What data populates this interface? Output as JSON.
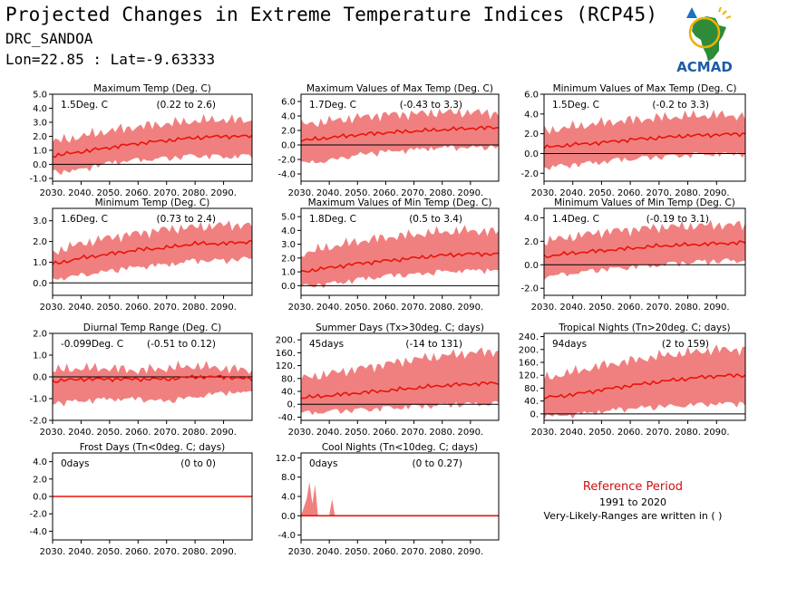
{
  "header": {
    "title": "Projected Changes in Extreme Temperature Indices (RCP45)",
    "station": "DRC_SANDOA",
    "coords": "Lon=22.85 : Lat=-9.63333"
  },
  "logo": {
    "text": "ACMAD"
  },
  "reference": {
    "title": "Reference Period",
    "years": "1991 to 2020",
    "note": "Very-Likely-Ranges are written in ( )"
  },
  "colors": {
    "line": "#e8140a",
    "band": "#f08080",
    "zero": "#000000"
  },
  "chart_data": [
    {
      "type": "area",
      "title": "Maximum Temp (Deg. C)",
      "change": "1.5Deg. C",
      "range": "(0.22 to 2.6)",
      "ylim": [
        -1.2,
        5.0
      ],
      "yticks": [
        "-1.0",
        "0.0",
        "1.0",
        "2.0",
        "3.0",
        "4.0",
        "5.0"
      ],
      "xticks": [
        "2030.",
        "2040.",
        "2050.",
        "2060.",
        "2070.",
        "2080.",
        "2090."
      ],
      "x_start": 2030,
      "x_end": 2100,
      "series": [
        {
          "x": [
            2030,
            2040,
            2050,
            2060,
            2070,
            2080,
            2090,
            2100
          ],
          "values": [
            0.6,
            0.9,
            1.2,
            1.5,
            1.7,
            1.9,
            2.0,
            2.0
          ],
          "lower": [
            -0.4,
            -0.2,
            0.3,
            0.5,
            0.6,
            0.8,
            0.7,
            0.8
          ],
          "upper": [
            1.6,
            2.0,
            2.4,
            2.7,
            2.9,
            3.1,
            3.2,
            3.1
          ]
        }
      ]
    },
    {
      "type": "area",
      "title": "Maximum Values of Max Temp (Deg. C)",
      "change": "1.7Deg. C",
      "range": "(-0.43 to 3.3)",
      "ylim": [
        -5.0,
        7.0
      ],
      "yticks": [
        "-4.0",
        "-2.0",
        "0.0",
        "2.0",
        "4.0",
        "6.0"
      ],
      "xticks": [
        "2030.",
        "2040.",
        "2050.",
        "2060.",
        "2070.",
        "2080.",
        "2090."
      ],
      "x_start": 2030,
      "x_end": 2100,
      "series": [
        {
          "x": [
            2030,
            2040,
            2050,
            2060,
            2070,
            2080,
            2090,
            2100
          ],
          "values": [
            0.6,
            1.0,
            1.4,
            1.7,
            1.9,
            2.1,
            2.3,
            2.4
          ],
          "lower": [
            -2.2,
            -1.8,
            -1.0,
            -0.6,
            -0.3,
            0.0,
            0.0,
            0.1
          ],
          "upper": [
            2.8,
            3.3,
            3.8,
            4.2,
            4.3,
            4.5,
            4.5,
            4.4
          ]
        }
      ]
    },
    {
      "type": "area",
      "title": "Minimum Values of Max Temp (Deg. C)",
      "change": "1.5Deg. C",
      "range": "(-0.2 to 3.3)",
      "ylim": [
        -2.8,
        6.0
      ],
      "yticks": [
        "-2.0",
        "0.0",
        "2.0",
        "4.0",
        "6.0"
      ],
      "xticks": [
        "2030.",
        "2040.",
        "2050.",
        "2060.",
        "2070.",
        "2080.",
        "2090."
      ],
      "x_start": 2030,
      "x_end": 2100,
      "series": [
        {
          "x": [
            2030,
            2040,
            2050,
            2060,
            2070,
            2080,
            2090,
            2100
          ],
          "values": [
            0.6,
            0.9,
            1.1,
            1.4,
            1.6,
            1.8,
            1.9,
            2.0
          ],
          "lower": [
            -1.2,
            -0.9,
            -0.6,
            -0.3,
            -0.1,
            0.1,
            0.2,
            0.2
          ],
          "upper": [
            2.3,
            2.7,
            3.1,
            3.4,
            3.6,
            3.8,
            3.9,
            3.8
          ]
        }
      ]
    },
    {
      "type": "area",
      "title": "Minimum Temp (Deg. C)",
      "change": "1.6Deg. C",
      "range": "(0.73 to 2.4)",
      "ylim": [
        -0.6,
        3.6
      ],
      "yticks": [
        "0.0",
        "1.0",
        "2.0",
        "3.0"
      ],
      "xticks": [
        "2030.",
        "2040.",
        "2050.",
        "2060.",
        "2070.",
        "2080.",
        "2090."
      ],
      "x_start": 2030,
      "x_end": 2100,
      "series": [
        {
          "x": [
            2030,
            2040,
            2050,
            2060,
            2070,
            2080,
            2090,
            2100
          ],
          "values": [
            0.9,
            1.2,
            1.4,
            1.6,
            1.7,
            1.9,
            1.9,
            2.0
          ],
          "lower": [
            0.3,
            0.5,
            0.7,
            0.9,
            1.0,
            1.2,
            1.2,
            1.3
          ],
          "upper": [
            1.5,
            1.9,
            2.2,
            2.4,
            2.6,
            2.7,
            2.8,
            2.8
          ]
        }
      ]
    },
    {
      "type": "area",
      "title": "Maximum Values of Min Temp (Deg. C)",
      "change": "1.8Deg. C",
      "range": "(0.5 to 3.4)",
      "ylim": [
        -0.7,
        5.6
      ],
      "yticks": [
        "0.0",
        "1.0",
        "2.0",
        "3.0",
        "4.0",
        "5.0"
      ],
      "xticks": [
        "2030.",
        "2040.",
        "2050.",
        "2060.",
        "2070.",
        "2080.",
        "2090."
      ],
      "x_start": 2030,
      "x_end": 2100,
      "series": [
        {
          "x": [
            2030,
            2040,
            2050,
            2060,
            2070,
            2080,
            2090,
            2100
          ],
          "values": [
            1.0,
            1.3,
            1.6,
            1.8,
            2.0,
            2.2,
            2.3,
            2.3
          ],
          "lower": [
            0.1,
            0.3,
            0.6,
            0.9,
            1.0,
            1.2,
            1.3,
            1.3
          ],
          "upper": [
            2.3,
            2.8,
            3.2,
            3.5,
            3.7,
            3.9,
            4.0,
            3.9
          ]
        }
      ]
    },
    {
      "type": "area",
      "title": "Minimum Values of Min Temp (Deg. C)",
      "change": "1.4Deg. C",
      "range": "(-0.19 to 3.1)",
      "ylim": [
        -2.6,
        4.8
      ],
      "yticks": [
        "-2.0",
        "0.0",
        "2.0",
        "4.0"
      ],
      "xticks": [
        "2030.",
        "2040.",
        "2050.",
        "2060.",
        "2070.",
        "2080.",
        "2090."
      ],
      "x_start": 2030,
      "x_end": 2100,
      "series": [
        {
          "x": [
            2030,
            2040,
            2050,
            2060,
            2070,
            2080,
            2090,
            2100
          ],
          "values": [
            0.7,
            1.0,
            1.2,
            1.4,
            1.6,
            1.7,
            1.8,
            1.9
          ],
          "lower": [
            -0.8,
            -0.5,
            -0.2,
            0.0,
            0.2,
            0.4,
            0.5,
            0.6
          ],
          "upper": [
            2.0,
            2.4,
            2.8,
            3.0,
            3.2,
            3.3,
            3.4,
            3.4
          ]
        }
      ]
    },
    {
      "type": "area",
      "title": "Diurnal Temp Range (Deg. C)",
      "change": "-0.099Deg. C",
      "range": "(-0.51 to 0.12)",
      "ylim": [
        -2.0,
        2.0
      ],
      "yticks": [
        "-2.0",
        "-1.0",
        "0.0",
        "1.0",
        "2.0"
      ],
      "xticks": [
        "2030.",
        "2040.",
        "2050.",
        "2060.",
        "2070.",
        "2080.",
        "2090."
      ],
      "x_start": 2030,
      "x_end": 2100,
      "series": [
        {
          "x": [
            2030,
            2040,
            2050,
            2060,
            2070,
            2080,
            2090,
            2100
          ],
          "values": [
            -0.2,
            -0.1,
            -0.1,
            -0.1,
            -0.1,
            0.0,
            0.0,
            -0.1
          ],
          "lower": [
            -1.1,
            -1.0,
            -0.9,
            -0.9,
            -1.0,
            -0.8,
            -0.6,
            -0.6
          ],
          "upper": [
            0.3,
            0.4,
            0.4,
            0.3,
            0.4,
            0.5,
            0.4,
            0.3
          ]
        }
      ]
    },
    {
      "type": "area",
      "title": "Summer Days (Tx>30deg. C; days)",
      "change": "45days",
      "range": "(-14 to 131)",
      "ylim": [
        -50,
        220
      ],
      "yticks": [
        "-40.",
        "0.",
        "40.",
        "80.",
        "120.",
        "160.",
        "200."
      ],
      "xticks": [
        "2030.",
        "2040.",
        "2050.",
        "2060.",
        "2070.",
        "2080.",
        "2090."
      ],
      "x_start": 2030,
      "x_end": 2100,
      "series": [
        {
          "x": [
            2030,
            2040,
            2050,
            2060,
            2070,
            2080,
            2090,
            2100
          ],
          "values": [
            20,
            27,
            35,
            42,
            50,
            58,
            63,
            66
          ],
          "lower": [
            -20,
            -15,
            -10,
            -5,
            0,
            5,
            8,
            10
          ],
          "upper": [
            80,
            95,
            110,
            125,
            140,
            150,
            160,
            165
          ]
        }
      ]
    },
    {
      "type": "area",
      "title": "Tropical Nights (Tn>20deg. C; days)",
      "change": "94days",
      "range": "(2 to 159)",
      "ylim": [
        -20,
        250
      ],
      "yticks": [
        "0.",
        "40.",
        "80.",
        "120.",
        "160.",
        "200.",
        "240."
      ],
      "xticks": [
        "2030.",
        "2040.",
        "2050.",
        "2060.",
        "2070.",
        "2080.",
        "2090."
      ],
      "x_start": 2030,
      "x_end": 2100,
      "series": [
        {
          "x": [
            2030,
            2040,
            2050,
            2060,
            2070,
            2080,
            2090,
            2100
          ],
          "values": [
            50,
            60,
            75,
            88,
            100,
            110,
            118,
            120
          ],
          "lower": [
            0,
            5,
            15,
            25,
            30,
            35,
            40,
            40
          ],
          "upper": [
            110,
            130,
            150,
            165,
            180,
            190,
            200,
            200
          ]
        }
      ]
    },
    {
      "type": "line",
      "title": "Frost Days (Tn<0deg. C; days)",
      "change": "0days",
      "range": "(0 to 0)",
      "ylim": [
        -5.0,
        5.0
      ],
      "yticks": [
        "-4.0",
        "-2.0",
        "0.0",
        "2.0",
        "4.0"
      ],
      "xticks": [
        "2030.",
        "2040.",
        "2050.",
        "2060.",
        "2070.",
        "2080.",
        "2090."
      ],
      "x_start": 2030,
      "x_end": 2100,
      "series": [
        {
          "x": [
            2030,
            2100
          ],
          "values": [
            0,
            0
          ],
          "lower": [
            0,
            0
          ],
          "upper": [
            0,
            0
          ]
        }
      ]
    },
    {
      "type": "area",
      "title": "Cool Nights (Tn<10deg. C; days)",
      "change": "0days",
      "range": "(0 to 0.27)",
      "ylim": [
        -5.0,
        13.0
      ],
      "yticks": [
        "-4.0",
        "0.0",
        "4.0",
        "8.0",
        "12.0"
      ],
      "xticks": [
        "2030.",
        "2040.",
        "2050.",
        "2060.",
        "2070.",
        "2080.",
        "2090."
      ],
      "x_start": 2030,
      "x_end": 2100,
      "series": [
        {
          "x": [
            2030,
            2032,
            2033,
            2034,
            2035,
            2036,
            2040,
            2041,
            2042,
            2043,
            2100
          ],
          "values": [
            0,
            0,
            0,
            0,
            0,
            0,
            0,
            0,
            0,
            0,
            0
          ],
          "lower": [
            0,
            0,
            0,
            0,
            0,
            0,
            0,
            0,
            0,
            0,
            0
          ],
          "upper": [
            0,
            3.5,
            7.0,
            2.5,
            6.5,
            0,
            0,
            3.5,
            0,
            0,
            0
          ]
        }
      ]
    }
  ]
}
